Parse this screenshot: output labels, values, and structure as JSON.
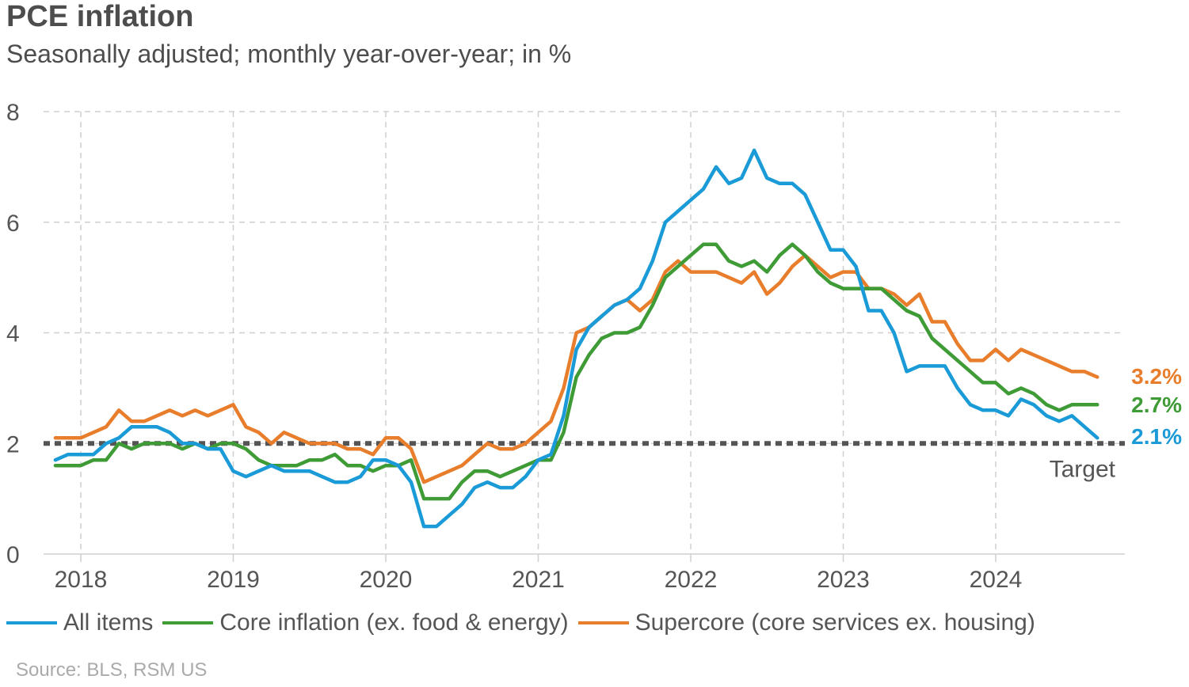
{
  "chart_data": {
    "type": "line",
    "title": "PCE inflation",
    "subtitle": "Seasonally adjusted; monthly year-over-year; in %",
    "ylim": [
      0,
      8
    ],
    "yticks": [
      0,
      2,
      4,
      6,
      8
    ],
    "xticks": [
      "2018",
      "2019",
      "2020",
      "2021",
      "2022",
      "2023",
      "2024"
    ],
    "x_start": 2017.833,
    "x_step_months": 1,
    "target": {
      "value": 2,
      "label": "Target"
    },
    "series": [
      {
        "name": "All items",
        "color": "#1a9ad6",
        "end_label": "2.1%",
        "values": [
          1.7,
          1.8,
          1.8,
          1.8,
          2.0,
          2.1,
          2.3,
          2.3,
          2.3,
          2.2,
          2.0,
          2.0,
          1.9,
          1.9,
          1.5,
          1.4,
          1.5,
          1.6,
          1.5,
          1.5,
          1.5,
          1.4,
          1.3,
          1.3,
          1.4,
          1.7,
          1.7,
          1.6,
          1.3,
          0.5,
          0.5,
          0.7,
          0.9,
          1.2,
          1.3,
          1.2,
          1.2,
          1.4,
          1.7,
          1.8,
          2.5,
          3.7,
          4.1,
          4.3,
          4.5,
          4.6,
          4.8,
          5.3,
          6.0,
          6.2,
          6.4,
          6.6,
          7.0,
          6.7,
          6.8,
          7.3,
          6.8,
          6.7,
          6.7,
          6.5,
          6.0,
          5.5,
          5.5,
          5.2,
          4.4,
          4.4,
          4.0,
          3.3,
          3.4,
          3.4,
          3.4,
          3.0,
          2.7,
          2.6,
          2.6,
          2.5,
          2.8,
          2.7,
          2.5,
          2.4,
          2.5,
          2.3,
          2.1
        ]
      },
      {
        "name": "Core inflation (ex. food & energy)",
        "color": "#3e9b36",
        "end_label": "2.7%",
        "values": [
          1.6,
          1.6,
          1.6,
          1.7,
          1.7,
          2.0,
          1.9,
          2.0,
          2.0,
          2.0,
          1.9,
          2.0,
          1.9,
          2.0,
          2.0,
          1.9,
          1.7,
          1.6,
          1.6,
          1.6,
          1.7,
          1.7,
          1.8,
          1.6,
          1.6,
          1.5,
          1.6,
          1.6,
          1.7,
          1.0,
          1.0,
          1.0,
          1.3,
          1.5,
          1.5,
          1.4,
          1.5,
          1.6,
          1.7,
          1.7,
          2.2,
          3.2,
          3.6,
          3.9,
          4.0,
          4.0,
          4.1,
          4.5,
          5.0,
          5.2,
          5.4,
          5.6,
          5.6,
          5.3,
          5.2,
          5.3,
          5.1,
          5.4,
          5.6,
          5.4,
          5.1,
          4.9,
          4.8,
          4.8,
          4.8,
          4.8,
          4.6,
          4.4,
          4.3,
          3.9,
          3.7,
          3.5,
          3.3,
          3.1,
          3.1,
          2.9,
          3.0,
          2.9,
          2.7,
          2.6,
          2.7,
          2.7,
          2.7
        ]
      },
      {
        "name": "Supercore (core services ex. housing)",
        "color": "#e87e2c",
        "end_label": "3.2%",
        "values": [
          2.1,
          2.1,
          2.1,
          2.2,
          2.3,
          2.6,
          2.4,
          2.4,
          2.5,
          2.6,
          2.5,
          2.6,
          2.5,
          2.6,
          2.7,
          2.3,
          2.2,
          2.0,
          2.2,
          2.1,
          2.0,
          2.0,
          2.0,
          1.9,
          1.9,
          1.8,
          2.1,
          2.1,
          1.9,
          1.3,
          1.4,
          1.5,
          1.6,
          1.8,
          2.0,
          1.9,
          1.9,
          2.0,
          2.2,
          2.4,
          3.0,
          4.0,
          4.1,
          4.3,
          4.5,
          4.6,
          4.4,
          4.6,
          5.1,
          5.3,
          5.1,
          5.1,
          5.1,
          5.0,
          4.9,
          5.1,
          4.7,
          4.9,
          5.2,
          5.4,
          5.2,
          5.0,
          5.1,
          5.1,
          4.8,
          4.8,
          4.7,
          4.5,
          4.7,
          4.2,
          4.2,
          3.8,
          3.5,
          3.5,
          3.7,
          3.5,
          3.7,
          3.6,
          3.5,
          3.4,
          3.3,
          3.3,
          3.2
        ]
      }
    ],
    "source": "Source: BLS, RSM US"
  }
}
